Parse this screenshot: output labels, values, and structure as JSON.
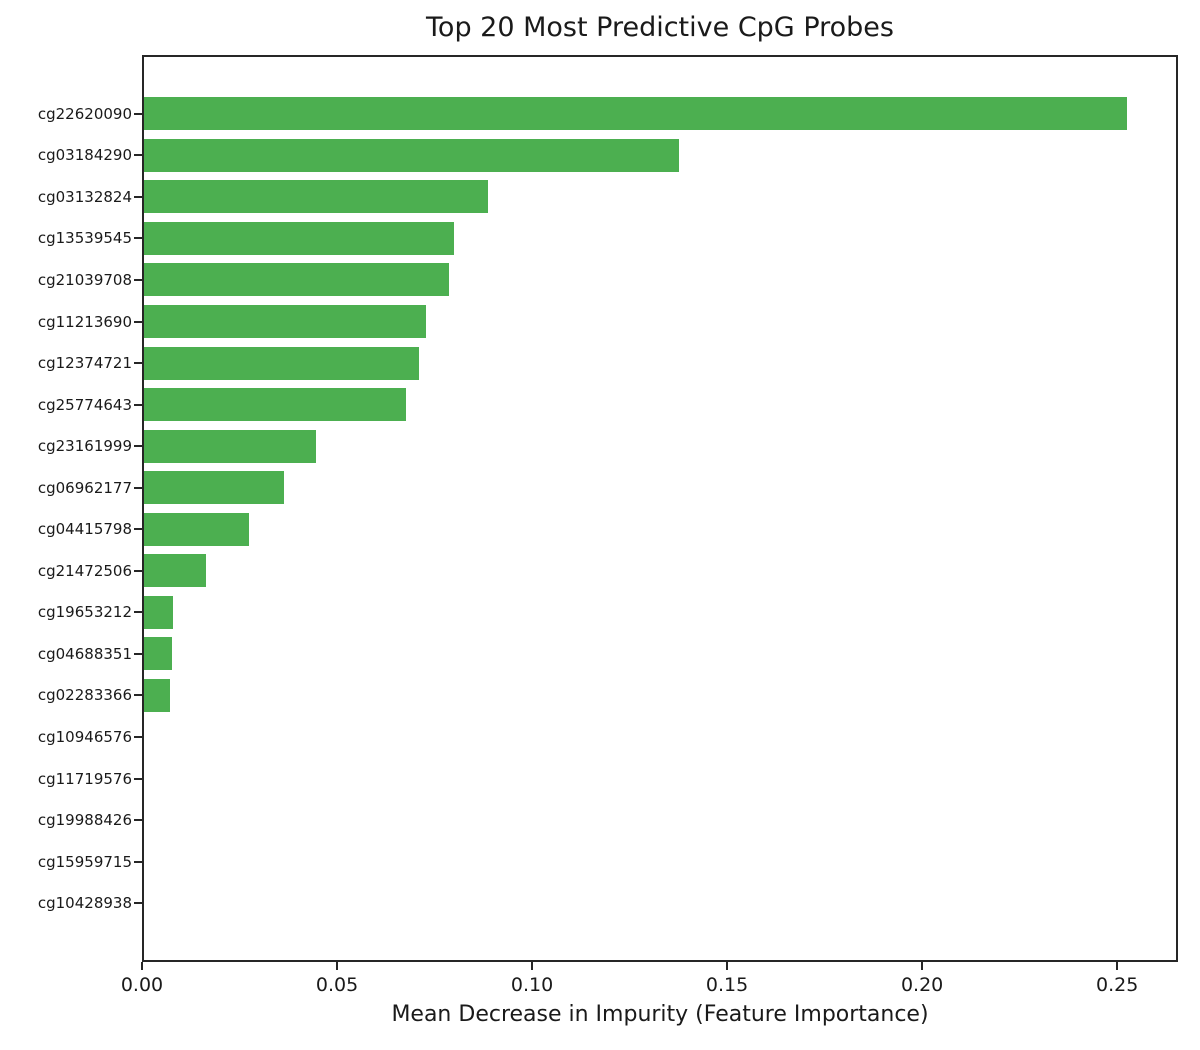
{
  "title": "Top 20 Most Predictive CpG Probes",
  "x_axis_label": "Mean Decrease in Impurity (Feature Importance)",
  "colors": {
    "bar": "#4caf50",
    "axis": "#262626",
    "text": "#1a1a1a",
    "background": "#ffffff"
  },
  "chart_data": {
    "type": "bar",
    "orientation": "horizontal",
    "title": "Top 20 Most Predictive CpG Probes",
    "xlabel": "Mean Decrease in Impurity (Feature Importance)",
    "ylabel": "",
    "categories": [
      "cg22620090",
      "cg03184290",
      "cg03132824",
      "cg13539545",
      "cg21039708",
      "cg11213690",
      "cg12374721",
      "cg25774643",
      "cg23161999",
      "cg06962177",
      "cg04415798",
      "cg21472506",
      "cg19653212",
      "cg04688351",
      "cg02283366",
      "cg10946576",
      "cg11719576",
      "cg19988426",
      "cg15959715",
      "cg10428938"
    ],
    "values": [
      0.2524,
      0.1376,
      0.0887,
      0.0799,
      0.0787,
      0.0729,
      0.071,
      0.0678,
      0.0445,
      0.0363,
      0.0274,
      0.0163,
      0.0079,
      0.0076,
      0.0073,
      0.0,
      0.0,
      0.0,
      0.0,
      0.0
    ],
    "xlim": [
      0,
      0.2656
    ],
    "xticks": [
      0.0,
      0.05,
      0.1,
      0.15,
      0.2,
      0.25
    ],
    "xtick_labels": [
      "0.00",
      "0.05",
      "0.10",
      "0.15",
      "0.20",
      "0.25"
    ],
    "grid": false,
    "legend": false,
    "bar_color": "#4caf50"
  }
}
